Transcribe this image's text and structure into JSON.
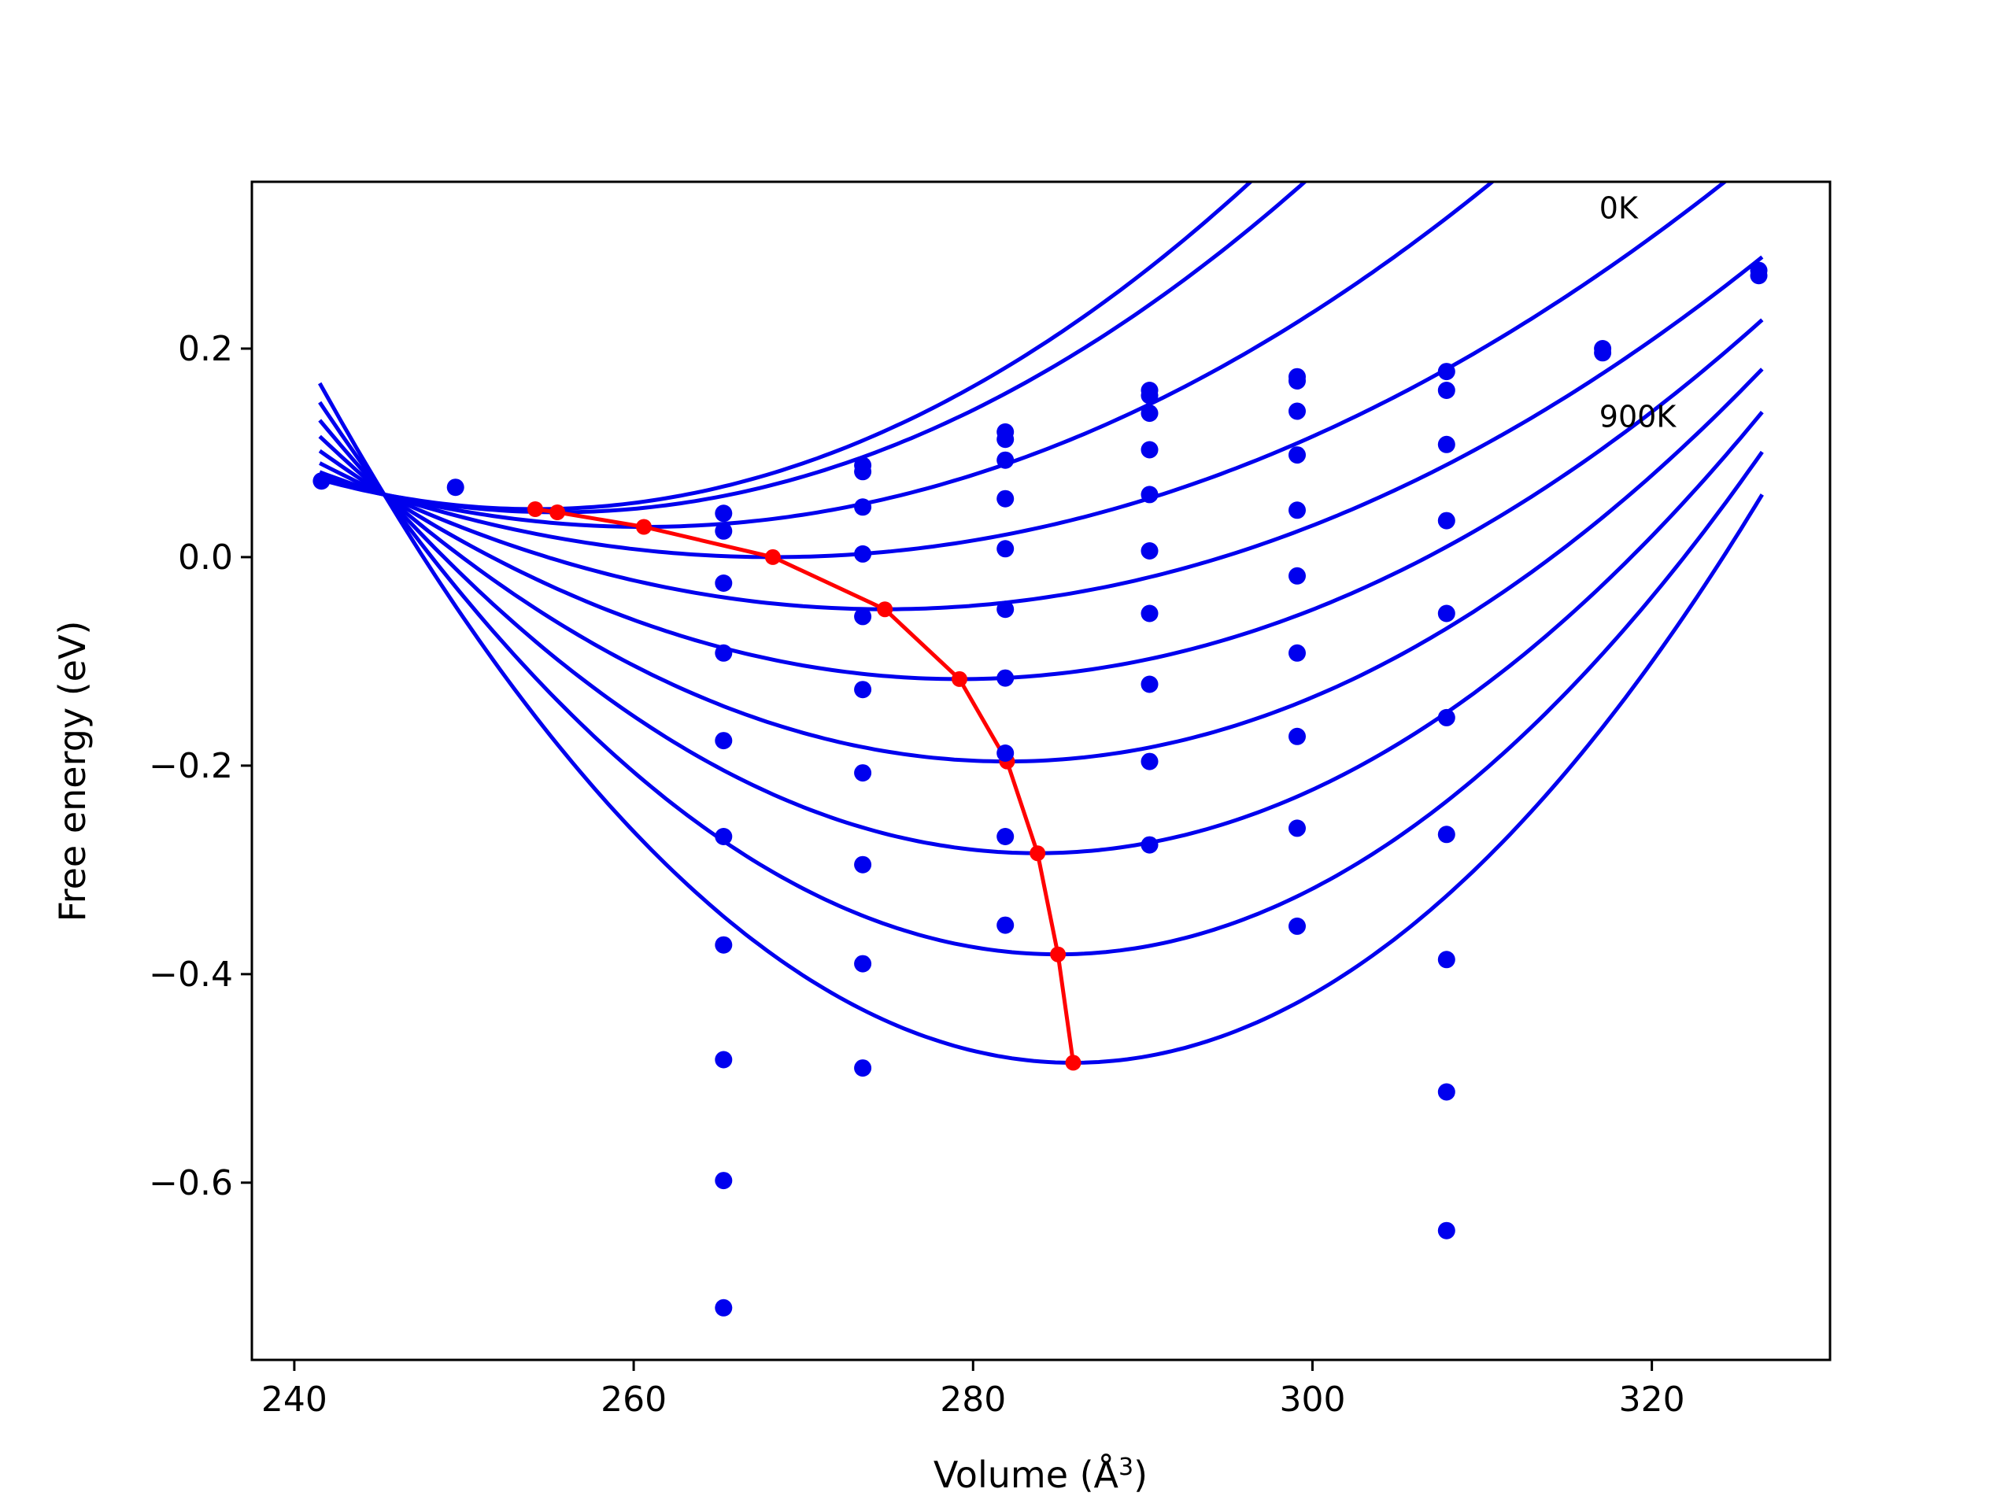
{
  "chart_data": {
    "type": "line",
    "title": "",
    "xlabel": "Volume (Å",
    "xlabel_sup": "3",
    "xlabel_close": ")",
    "ylabel": "Free energy (eV)",
    "xlim": [
      237.5,
      330.5
    ],
    "ylim": [
      -0.77,
      0.36
    ],
    "xticks": [
      240,
      260,
      280,
      300,
      320
    ],
    "yticks": [
      0.2,
      0.0,
      -0.2,
      -0.4,
      -0.6
    ],
    "xtick_labels": [
      "240",
      "260",
      "280",
      "300",
      "320"
    ],
    "ytick_labels": [
      "0.2",
      "0.0",
      "−0.2",
      "−0.4",
      "−0.6"
    ],
    "annotations": [
      {
        "text": "0K",
        "x": 316.9,
        "y": 0.325
      },
      {
        "text": "900K",
        "x": 316.9,
        "y": 0.125
      }
    ],
    "fit_curves": {
      "color": "#0000ee",
      "x_range": [
        241.5,
        326.5
      ],
      "minima": [
        {
          "x": 254.2,
          "y": 0.046
        },
        {
          "x": 255.5,
          "y": 0.043
        },
        {
          "x": 260.6,
          "y": 0.029
        },
        {
          "x": 268.2,
          "y": 0.0
        },
        {
          "x": 274.8,
          "y": -0.05
        },
        {
          "x": 279.2,
          "y": -0.117
        },
        {
          "x": 282.0,
          "y": -0.196
        },
        {
          "x": 283.8,
          "y": -0.284
        },
        {
          "x": 285.0,
          "y": -0.381
        },
        {
          "x": 285.9,
          "y": -0.485
        }
      ]
    },
    "scatter": {
      "color": "#0000ee",
      "points": [
        [
          241.6,
          0.073
        ],
        [
          249.5,
          0.067
        ],
        [
          265.3,
          0.042
        ],
        [
          265.3,
          0.025
        ],
        [
          265.3,
          -0.025
        ],
        [
          265.3,
          -0.092
        ],
        [
          265.3,
          -0.176
        ],
        [
          265.3,
          -0.268
        ],
        [
          265.3,
          -0.372
        ],
        [
          265.3,
          -0.482
        ],
        [
          265.3,
          -0.598
        ],
        [
          265.3,
          -0.72
        ],
        [
          273.5,
          0.088
        ],
        [
          273.5,
          0.082
        ],
        [
          273.5,
          0.048
        ],
        [
          273.5,
          0.003
        ],
        [
          273.5,
          -0.057
        ],
        [
          273.5,
          -0.127
        ],
        [
          273.5,
          -0.207
        ],
        [
          273.5,
          -0.295
        ],
        [
          273.5,
          -0.39
        ],
        [
          273.5,
          -0.49
        ],
        [
          281.9,
          0.12
        ],
        [
          281.9,
          0.113
        ],
        [
          281.9,
          0.093
        ],
        [
          281.9,
          0.056
        ],
        [
          281.9,
          0.008
        ],
        [
          281.9,
          -0.05
        ],
        [
          281.9,
          -0.116
        ],
        [
          281.9,
          -0.188
        ],
        [
          281.9,
          -0.268
        ],
        [
          281.9,
          -0.353
        ],
        [
          290.4,
          0.16
        ],
        [
          290.4,
          0.155
        ],
        [
          290.4,
          0.138
        ],
        [
          290.4,
          0.103
        ],
        [
          290.4,
          0.06
        ],
        [
          290.4,
          0.006
        ],
        [
          290.4,
          -0.054
        ],
        [
          290.4,
          -0.122
        ],
        [
          290.4,
          -0.196
        ],
        [
          290.4,
          -0.276
        ],
        [
          299.1,
          0.173
        ],
        [
          299.1,
          0.169
        ],
        [
          299.1,
          0.14
        ],
        [
          299.1,
          0.098
        ],
        [
          299.1,
          0.045
        ],
        [
          299.1,
          -0.018
        ],
        [
          299.1,
          -0.092
        ],
        [
          299.1,
          -0.172
        ],
        [
          299.1,
          -0.26
        ],
        [
          299.1,
          -0.354
        ],
        [
          307.9,
          0.178
        ],
        [
          307.9,
          0.16
        ],
        [
          307.9,
          0.108
        ],
        [
          307.9,
          0.035
        ],
        [
          307.9,
          -0.054
        ],
        [
          307.9,
          -0.154
        ],
        [
          307.9,
          -0.266
        ],
        [
          307.9,
          -0.386
        ],
        [
          307.9,
          -0.513
        ],
        [
          307.9,
          -0.646
        ],
        [
          317.1,
          0.2
        ],
        [
          317.1,
          0.196
        ],
        [
          326.3,
          0.275
        ],
        [
          326.3,
          0.27
        ]
      ]
    },
    "minimum_path": {
      "color": "#ff0000",
      "points": [
        [
          254.2,
          0.046
        ],
        [
          255.5,
          0.043
        ],
        [
          260.6,
          0.029
        ],
        [
          268.2,
          0.0
        ],
        [
          274.8,
          -0.05
        ],
        [
          279.2,
          -0.117
        ],
        [
          282.0,
          -0.196
        ],
        [
          283.8,
          -0.284
        ],
        [
          285.0,
          -0.381
        ],
        [
          285.9,
          -0.485
        ]
      ]
    }
  }
}
